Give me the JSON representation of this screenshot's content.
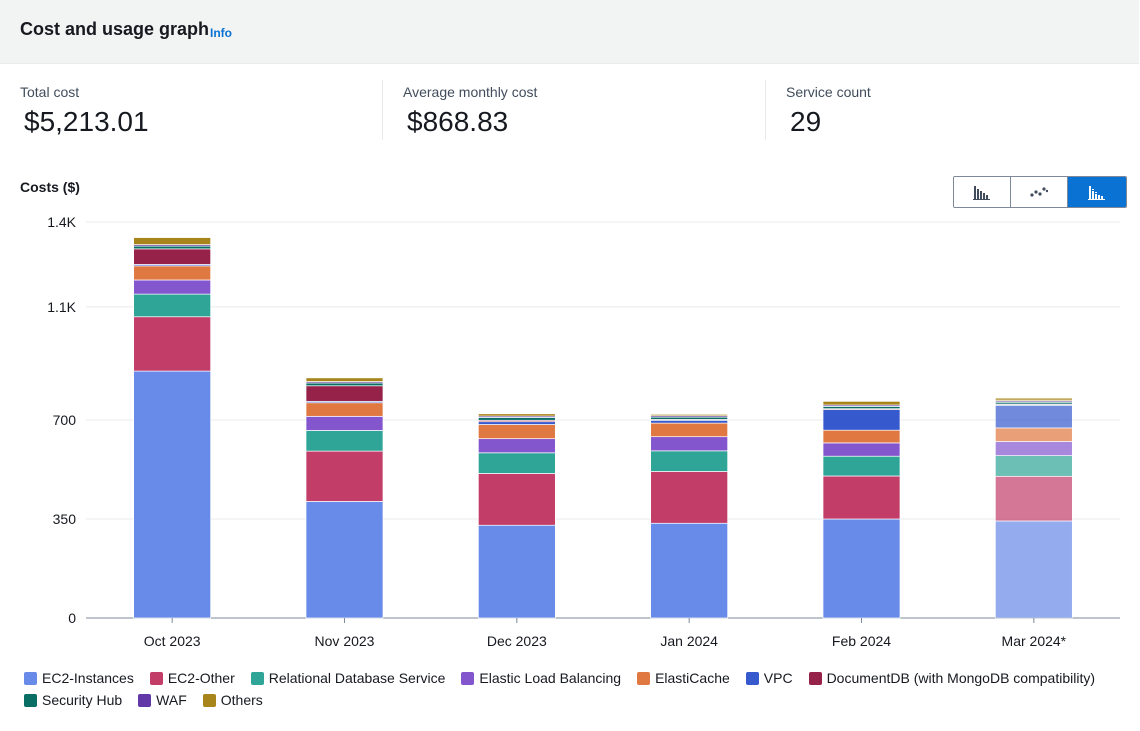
{
  "header": {
    "title": "Cost and usage graph",
    "info_link": "Info"
  },
  "kpis": {
    "total_cost": {
      "label": "Total cost",
      "value": "$5,213.01"
    },
    "average_monthly_cost": {
      "label": "Average monthly cost",
      "value": "$868.83"
    },
    "service_count": {
      "label": "Service count",
      "value": "29"
    }
  },
  "chart_type_toggle": {
    "options": [
      {
        "icon": "bar-chart-icon",
        "label": "Bar"
      },
      {
        "icon": "line-chart-icon",
        "label": "Line"
      },
      {
        "icon": "stacked-bar-chart-icon",
        "label": "Stacked"
      }
    ],
    "selected": "Stacked"
  },
  "chart_data": {
    "type": "bar",
    "stacked": true,
    "title": "Costs ($)",
    "xlabel": "",
    "ylabel": "Costs ($)",
    "ylim": [
      0,
      1400
    ],
    "yticks": [
      0,
      350,
      700,
      1100,
      1400
    ],
    "ytick_labels": [
      "0",
      "350",
      "700",
      "1.1K",
      "1.4K"
    ],
    "categories": [
      "Oct 2023",
      "Nov 2023",
      "Dec 2023",
      "Jan 2024",
      "Feb 2024",
      "Mar 2024*"
    ],
    "forecast_category": "Mar 2024*",
    "series": [
      {
        "name": "EC2-Instances",
        "color": "#688ae8",
        "values": [
          873,
          412,
          328,
          335,
          350,
          343
        ]
      },
      {
        "name": "EC2-Other",
        "color": "#c33d69",
        "values": [
          192,
          178,
          183,
          183,
          152,
          158
        ]
      },
      {
        "name": "Relational Database Service",
        "color": "#2ea597",
        "values": [
          80,
          73,
          73,
          73,
          70,
          73
        ]
      },
      {
        "name": "Elastic Load Balancing",
        "color": "#8456ce",
        "values": [
          50,
          50,
          50,
          50,
          47,
          50
        ]
      },
      {
        "name": "ElastiCache",
        "color": "#e07941",
        "values": [
          50,
          48,
          50,
          48,
          45,
          48
        ]
      },
      {
        "name": "VPC",
        "color": "#3759ce",
        "values": [
          5,
          5,
          10,
          10,
          73,
          80
        ]
      },
      {
        "name": "DocumentDB (with MongoDB compatibility)",
        "color": "#962249",
        "values": [
          55,
          55,
          5,
          3,
          3,
          3
        ]
      },
      {
        "name": "Security Hub",
        "color": "#096f64",
        "values": [
          10,
          10,
          10,
          8,
          8,
          8
        ]
      },
      {
        "name": "WAF",
        "color": "#6237a7",
        "values": [
          5,
          5,
          5,
          5,
          5,
          5
        ]
      },
      {
        "name": "Others",
        "color": "#a7851a",
        "values": [
          25,
          13,
          8,
          5,
          13,
          10
        ]
      }
    ],
    "grid": true,
    "legend_position": "bottom"
  }
}
